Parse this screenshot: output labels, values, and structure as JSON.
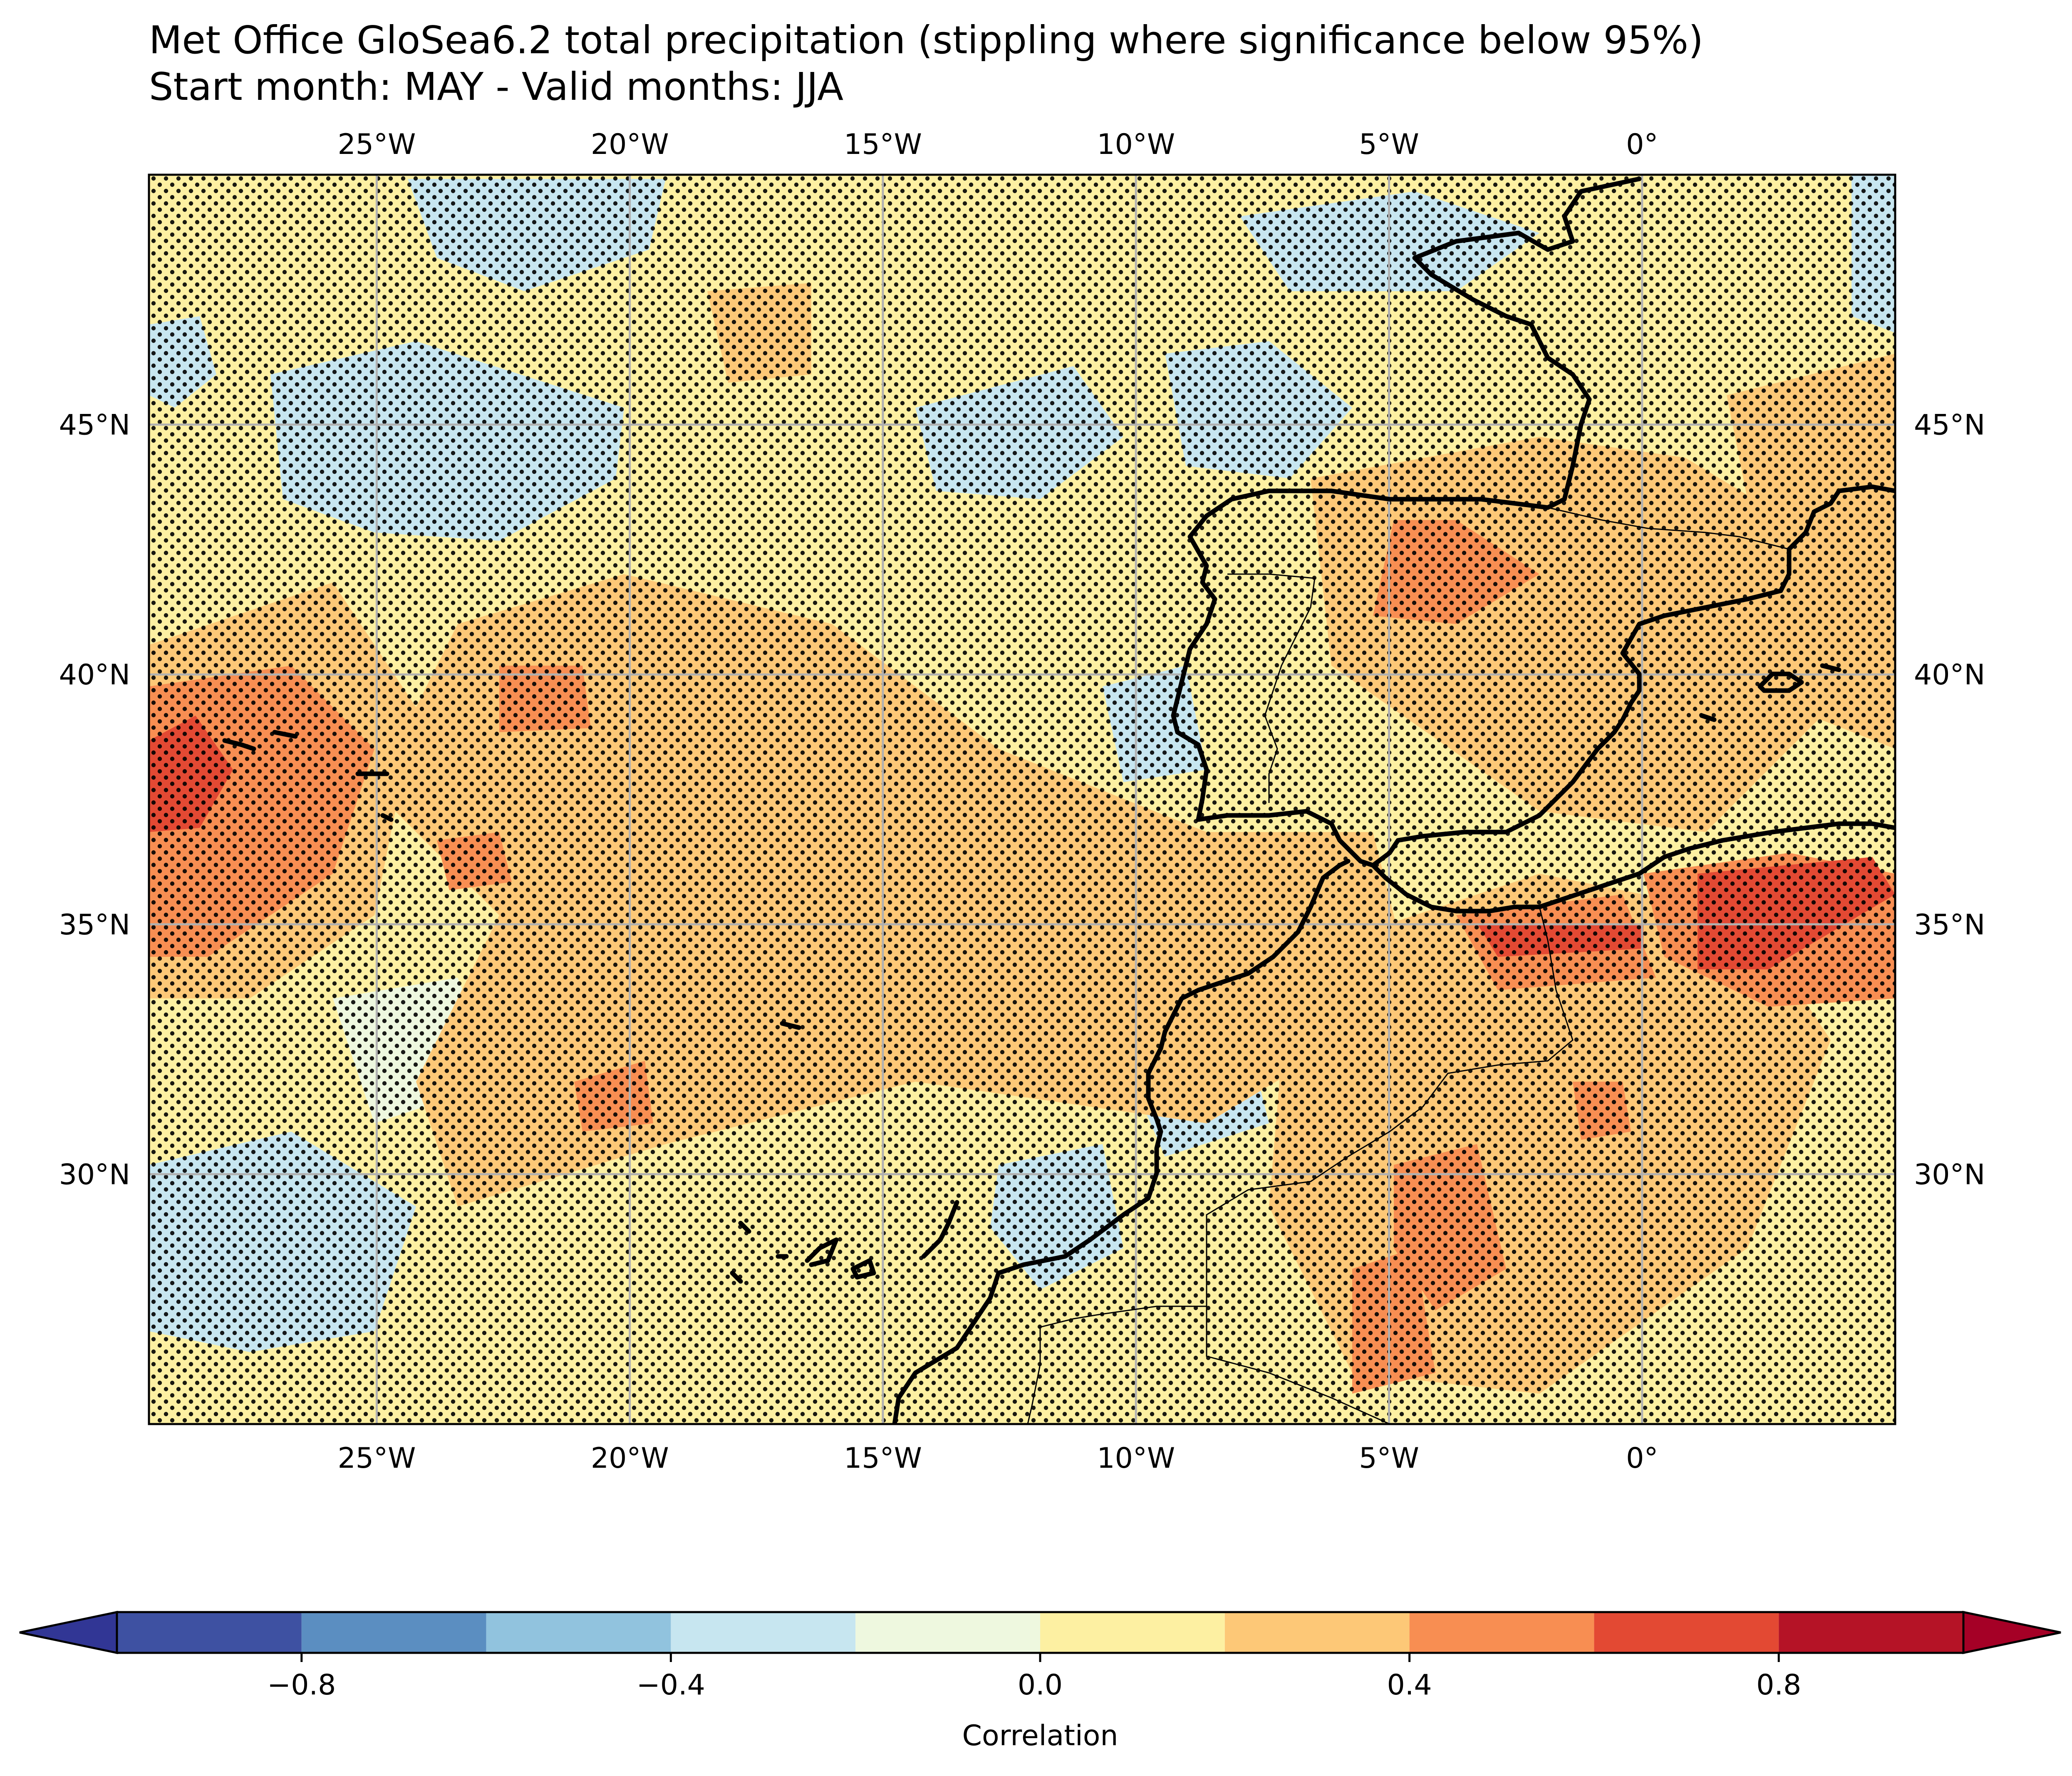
{
  "title": {
    "line1": "Met Office GloSea6.2 total precipitation (stippling where significance below 95%)",
    "line2": "Start month: MAY - Valid months: JJA"
  },
  "map": {
    "lon_range": [
      -29.5,
      5.0
    ],
    "lat_range": [
      25.0,
      50.0
    ],
    "gridlines": true,
    "lon_ticks": [
      {
        "value": -25,
        "label": "25°W"
      },
      {
        "value": -20,
        "label": "20°W"
      },
      {
        "value": -15,
        "label": "15°W"
      },
      {
        "value": -10,
        "label": "10°W"
      },
      {
        "value": -5,
        "label": "5°W"
      },
      {
        "value": 0,
        "label": "0°"
      }
    ],
    "lat_ticks": [
      {
        "value": 45,
        "label": "45°N"
      },
      {
        "value": 40,
        "label": "40°N"
      },
      {
        "value": 35,
        "label": "35°N"
      },
      {
        "value": 30,
        "label": "30°N"
      }
    ],
    "regions": [
      {
        "level": "0.2 to 0.4",
        "color": "#fdc877"
      },
      {
        "level": "0.4 to 0.6",
        "color": "#f88e52"
      },
      {
        "level": "0.6 to 0.8",
        "color": "#e34933"
      },
      {
        "level": "-0.2 to 0",
        "color": "#eef8df"
      },
      {
        "level": "-0.4 to -0.2",
        "color": "#c7e6f0"
      }
    ]
  },
  "colorbar": {
    "label": "Correlation",
    "ticks": [
      "−0.8",
      "−0.4",
      "0.0",
      "0.4",
      "0.8"
    ],
    "tick_values": [
      -0.8,
      -0.4,
      0.0,
      0.4,
      0.8
    ],
    "range": [
      -1.0,
      1.0
    ],
    "extend": "both",
    "bins": [
      {
        "from": -1.0,
        "to": -0.8,
        "color": "#3e51a2"
      },
      {
        "from": -0.8,
        "to": -0.6,
        "color": "#5b8ec1"
      },
      {
        "from": -0.6,
        "to": -0.4,
        "color": "#91c3de"
      },
      {
        "from": -0.4,
        "to": -0.2,
        "color": "#c7e6f0"
      },
      {
        "from": -0.2,
        "to": 0.0,
        "color": "#eef8df"
      },
      {
        "from": 0.0,
        "to": 0.2,
        "color": "#fdf0a2"
      },
      {
        "from": 0.2,
        "to": 0.4,
        "color": "#fdc877"
      },
      {
        "from": 0.4,
        "to": 0.6,
        "color": "#f88e52"
      },
      {
        "from": 0.6,
        "to": 0.8,
        "color": "#e34933"
      },
      {
        "from": 0.8,
        "to": 1.0,
        "color": "#b51326"
      }
    ],
    "under_color": "#313695",
    "over_color": "#a50026"
  }
}
